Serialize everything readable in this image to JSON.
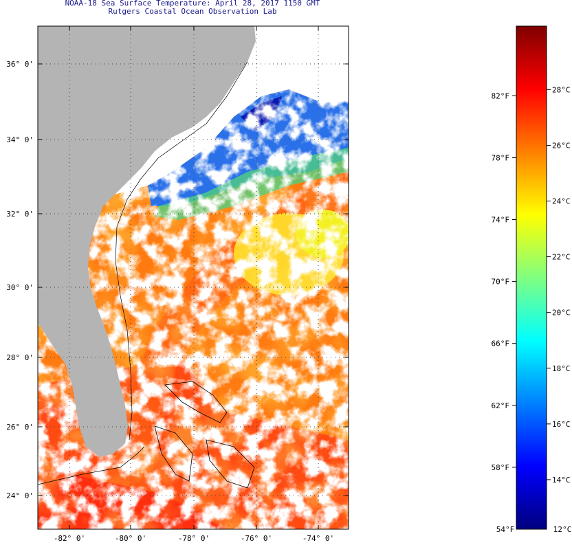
{
  "title": "NOAA-18 Sea Surface Temperature:  April 28, 2017 1150 GMT",
  "subtitle": "Rutgers Coastal Ocean Observation Lab",
  "map": {
    "lat_labels": [
      "36° 0'",
      "34° 0'",
      "32° 0'",
      "30° 0'",
      "28° 0'",
      "26° 0'",
      "24° 0'"
    ],
    "lon_labels": [
      "-82° 0'",
      "-80° 0'",
      "-78° 0'",
      "-76° 0'",
      "-74° 0'"
    ],
    "colors": {
      "land": "#b4b4b4",
      "cloud": "#ffffff",
      "warm": "#ff7a10",
      "hot": "#ff3a10",
      "cool": "#ffd020",
      "cold": "#1030e0"
    }
  },
  "colorbar": {
    "fahrenheit_labels": [
      "82°F",
      "78°F",
      "74°F",
      "70°F",
      "66°F",
      "62°F",
      "58°F",
      "54°F"
    ],
    "celsius_labels": [
      "28°C",
      "26°C",
      "24°C",
      "22°C",
      "20°C",
      "18°C",
      "16°C",
      "14°C",
      "12°C"
    ],
    "stops": [
      "#00007f",
      "#0000ff",
      "#0080ff",
      "#00ffff",
      "#80ff80",
      "#ffff00",
      "#ff8000",
      "#ff0000",
      "#7f0000"
    ]
  }
}
